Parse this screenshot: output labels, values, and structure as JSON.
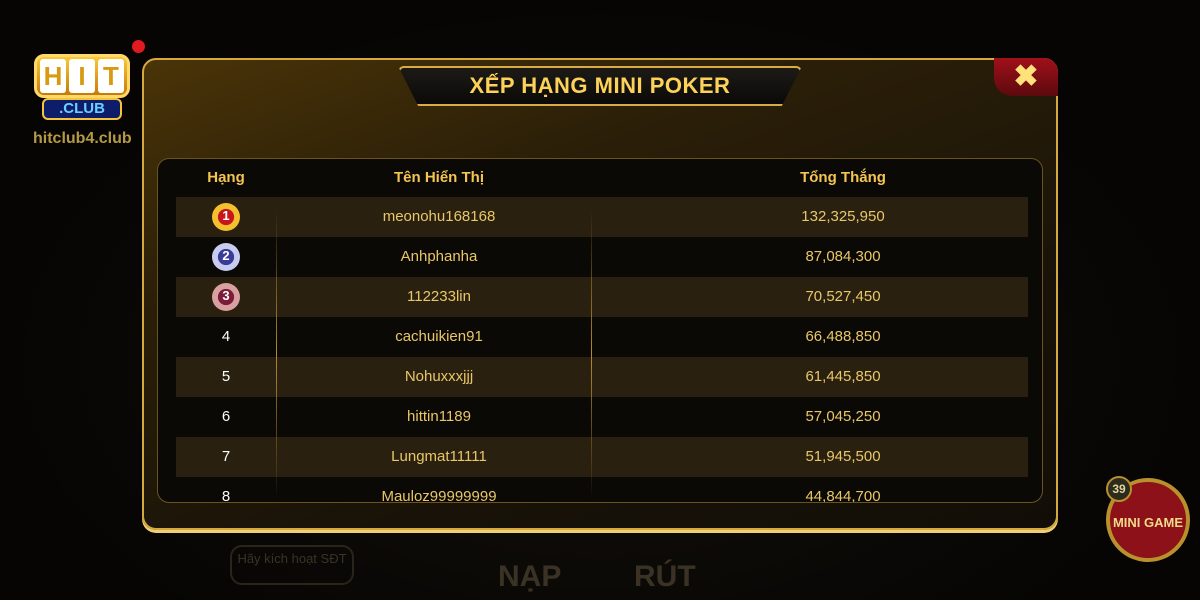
{
  "brand": {
    "logo_text": "HIT",
    "logo_sub": ".CLUB",
    "site": "hitclub4.club"
  },
  "modal": {
    "title": "XẾP HẠNG MINI POKER",
    "close_icon": "close-icon"
  },
  "table": {
    "headers": [
      "Hạng",
      "Tên Hiển Thị",
      "Tổng Thắng"
    ],
    "rows": [
      {
        "rank": "1",
        "name": "meonohu168168",
        "total": "132,325,950",
        "medal": "gold"
      },
      {
        "rank": "2",
        "name": "Anhphanha",
        "total": "87,084,300",
        "medal": "silver"
      },
      {
        "rank": "3",
        "name": "112233lin",
        "total": "70,527,450",
        "medal": "bronze"
      },
      {
        "rank": "4",
        "name": "cachuikien91",
        "total": "66,488,850"
      },
      {
        "rank": "5",
        "name": "Nohuxxxjjj",
        "total": "61,445,850"
      },
      {
        "rank": "6",
        "name": "hittin1189",
        "total": "57,045,250"
      },
      {
        "rank": "7",
        "name": "Lungmat11111",
        "total": "51,945,500"
      },
      {
        "rank": "8",
        "name": "Mauloz99999999",
        "total": "44,844,700"
      }
    ]
  },
  "background": {
    "activate_phone": "Hãy kích hoạt SĐT",
    "deposit": "NẠP",
    "withdraw": "RÚT",
    "mini_game": "MINI GAME",
    "mini_game_badge": "39"
  },
  "colors": {
    "gold": "#fcd259",
    "frame": "#d6a93e",
    "close": "#a0101a"
  }
}
